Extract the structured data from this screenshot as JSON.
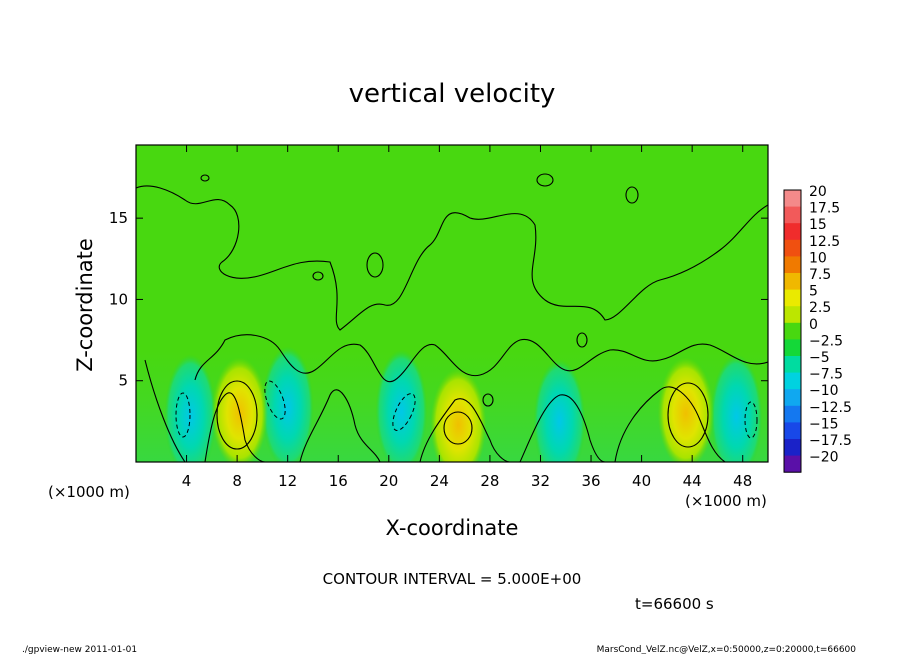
{
  "chart_data": {
    "type": "heatmap",
    "title": "vertical velocity",
    "xlabel": "X-coordinate",
    "ylabel": "Z-coordinate",
    "x_unit_left": "(×1000 m)",
    "x_unit_right": "(×1000 m)",
    "xlim": [
      0,
      50
    ],
    "ylim": [
      0,
      19.5
    ],
    "x_ticks": [
      4,
      8,
      12,
      16,
      20,
      24,
      28,
      32,
      36,
      40,
      44,
      48
    ],
    "y_ticks": [
      5,
      10,
      15
    ],
    "contour_interval_label": "CONTOUR INTERVAL = 5.000E+00",
    "time_label": "t=66600 s",
    "colorbar": {
      "levels": [
        20,
        17.5,
        15,
        12.5,
        10,
        7.5,
        5,
        2.5,
        0,
        -2.5,
        -5,
        -7.5,
        -10,
        -12.5,
        -15,
        -17.5,
        -20
      ],
      "colors": [
        "#f48a8a",
        "#f25a5a",
        "#f02c2c",
        "#f05010",
        "#f07a00",
        "#f0b800",
        "#eaea00",
        "#bce600",
        "#48d810",
        "#14d838",
        "#00dca0",
        "#00d2e0",
        "#10a8f0",
        "#1478f0",
        "#1848e8",
        "#1a22c8",
        "#5a10a8"
      ]
    },
    "features": {
      "updrafts": [
        {
          "x": 8.2,
          "z": 3.0,
          "w": 7.5
        },
        {
          "x": 25.5,
          "z": 2.3,
          "w": 5.0
        },
        {
          "x": 43.5,
          "z": 3.0,
          "w": 7.5
        }
      ],
      "downdrafts": [
        {
          "x": 4.3,
          "z": 2.8,
          "w": -5.0
        },
        {
          "x": 12.0,
          "z": 3.3,
          "w": -5.0
        },
        {
          "x": 21.0,
          "z": 3.1,
          "w": -5.0
        },
        {
          "x": 33.5,
          "z": 2.5,
          "w": -5.0
        },
        {
          "x": 47.5,
          "z": 2.8,
          "w": -5.0
        }
      ]
    }
  },
  "footer": {
    "left": "./gpview-new  2011-01-01",
    "right": "MarsCond_VelZ.nc@VelZ,x=0:50000,z=0:20000,t=66600"
  }
}
